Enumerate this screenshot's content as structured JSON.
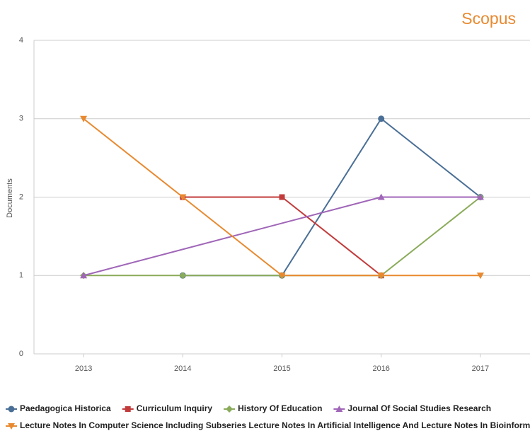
{
  "brand": "Scopus",
  "chart_data": {
    "type": "line",
    "ylabel": "Documents",
    "xlim": [
      2012.5,
      2017.5
    ],
    "xticks": [
      2013,
      2014,
      2015,
      2016,
      2017
    ],
    "ylim": [
      0,
      4
    ],
    "yticks": [
      0,
      1,
      2,
      3,
      4
    ],
    "grid": true,
    "legend": "bottom",
    "series": [
      {
        "name": "Paedagogica Historica",
        "color": "#4a6f96",
        "marker": "circle",
        "x": [
          2014,
          2015,
          2016,
          2017
        ],
        "values": [
          1,
          1,
          3,
          2
        ]
      },
      {
        "name": "Curriculum Inquiry",
        "color": "#c23b3b",
        "marker": "square",
        "x": [
          2014,
          2015,
          2016
        ],
        "values": [
          2,
          2,
          1
        ]
      },
      {
        "name": "History Of Education",
        "color": "#8aab5a",
        "marker": "diamond",
        "x": [
          2013,
          2014,
          2015,
          2016,
          2017
        ],
        "values": [
          1,
          1,
          1,
          1,
          2
        ]
      },
      {
        "name": "Journal Of Social Studies Research",
        "color": "#a066b8",
        "marker": "triangle-up",
        "x": [
          2013,
          2016,
          2017
        ],
        "values": [
          1,
          2,
          2
        ]
      },
      {
        "name": "Lecture Notes In Computer Science Including Subseries Lecture Notes In Artificial Intelligence And Lecture Notes In Bioinformatics",
        "color": "#e8892f",
        "marker": "triangle-down",
        "x": [
          2013,
          2014,
          2015,
          2016,
          2017
        ],
        "values": [
          3,
          2,
          1,
          1,
          1
        ]
      }
    ]
  }
}
